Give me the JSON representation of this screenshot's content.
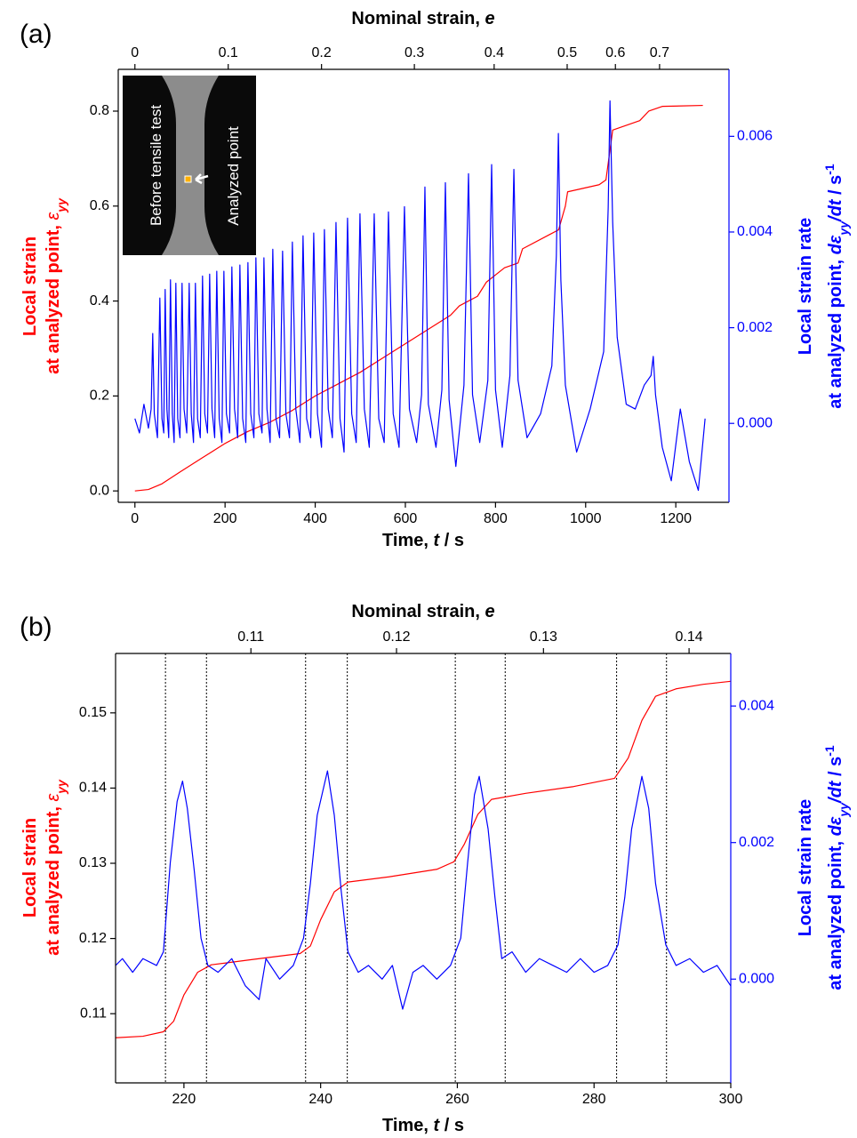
{
  "chart_data": [
    {
      "type": "line",
      "panel_label": "(a)",
      "x_label": [
        "Time, ",
        "t",
        " / s"
      ],
      "y_label": [
        [
          "Local strain"
        ],
        [
          "at analyzed point, ",
          "ε",
          "yy"
        ]
      ],
      "y2_label": [
        [
          "Local strain rate"
        ],
        [
          "at analyzed point, ",
          "dε",
          "yy",
          "/dt",
          " / s",
          "-1"
        ]
      ],
      "x2": {
        "label": [
          "Nominal strain, ",
          "e"
        ],
        "ticks": [
          0,
          0.1,
          0.2,
          0.3,
          0.4,
          0.5,
          0.6,
          0.7
        ],
        "tick_times": [
          0,
          207,
          414,
          620,
          797,
          959,
          1066,
          1164
        ]
      },
      "annotations": [
        "Before tensile test",
        "Analyzed point"
      ],
      "xlim": [
        -37,
        1318
      ],
      "xticks": [
        0,
        200,
        400,
        600,
        800,
        1000,
        1200
      ],
      "ylim": [
        -0.024,
        0.888
      ],
      "yticks": [
        {
          "value": 0,
          "label": "0.0"
        },
        0.2,
        0.4,
        0.6,
        0.8
      ],
      "y2lim": [
        -0.00165,
        0.0074
      ],
      "y2ticks": [
        {
          "value": 0,
          "label": "0.000"
        },
        {
          "value": 0.002,
          "label": "0.002"
        },
        {
          "value": 0.004,
          "label": "0.004"
        },
        {
          "value": 0.006,
          "label": "0.006"
        }
      ],
      "series": [
        {
          "color": "#ff0000",
          "x": [
            0,
            30,
            60,
            100,
            150,
            200,
            250,
            300,
            350,
            400,
            450,
            500,
            550,
            600,
            650,
            700,
            720,
            760,
            780,
            820,
            850,
            860,
            920,
            940,
            955,
            960,
            1030,
            1045,
            1060,
            1120,
            1140,
            1170,
            1260
          ],
          "values": [
            0,
            0.003,
            0.015,
            0.04,
            0.07,
            0.1,
            0.125,
            0.145,
            0.17,
            0.2,
            0.225,
            0.25,
            0.28,
            0.31,
            0.34,
            0.37,
            0.39,
            0.41,
            0.44,
            0.47,
            0.48,
            0.51,
            0.54,
            0.55,
            0.6,
            0.63,
            0.645,
            0.655,
            0.76,
            0.78,
            0.8,
            0.81,
            0.812
          ]
        },
        {
          "color": "#0000ff",
          "axis": "y2",
          "x": [
            0,
            10,
            20,
            30,
            36,
            39.5,
            43,
            50,
            55.3,
            60,
            64,
            67.1,
            71,
            75,
            78.9,
            83,
            87,
            90.8,
            95,
            100,
            104.6,
            109,
            115,
            120.4,
            125,
            130,
            134.2,
            139,
            145,
            150,
            155,
            161,
            165.8,
            171,
            177,
            181.6,
            187,
            193,
            197.4,
            203,
            210,
            215.1,
            221,
            228,
            232.9,
            239,
            246,
            250.7,
            257,
            264,
            268.4,
            275,
            282,
            286.2,
            293,
            300,
            305.9,
            313,
            321,
            327.6,
            335,
            343,
            349.3,
            357,
            366,
            373,
            381,
            390,
            396.7,
            405,
            414,
            420.4,
            429,
            438,
            446.1,
            455,
            464,
            471.7,
            481,
            491,
            499.3,
            509,
            520,
            530.9,
            541,
            553,
            562.5,
            573,
            586,
            598,
            609,
            625,
            636,
            643.4,
            651,
            668,
            681,
            688.8,
            697,
            712,
            730,
            740.1,
            749,
            765,
            783,
            791.4,
            800,
            815,
            832,
            840.8,
            850,
            870,
            900,
            925,
            935,
            939.5,
            945,
            955,
            980,
            1010,
            1040,
            1050,
            1054,
            1060,
            1070,
            1090,
            1110,
            1130,
            1145,
            1150,
            1155,
            1170,
            1190,
            1210,
            1230,
            1250,
            1265
          ],
          "values": [
            0.0001,
            -0.0002,
            0.0004,
            -0.0001,
            0.0003,
            0.00188,
            0.0002,
            -0.0003,
            0.00262,
            0.0001,
            -0.0002,
            0.0028,
            0.0003,
            -0.0003,
            0.003,
            0.0002,
            -0.0004,
            0.00293,
            0.0001,
            -0.0003,
            0.00293,
            0.0003,
            -0.0002,
            0.00293,
            0.0002,
            -0.0004,
            0.00293,
            0.0001,
            -0.0003,
            0.00308,
            0.0002,
            -0.0002,
            0.00312,
            0.0003,
            -0.0003,
            0.00318,
            0.0001,
            -0.0004,
            0.00318,
            0.0002,
            -0.0002,
            0.00327,
            0.0003,
            -0.0003,
            0.00331,
            0.0001,
            -0.0004,
            0.00336,
            0.0002,
            -0.0003,
            0.00346,
            0.0002,
            -0.0002,
            0.00346,
            0.0003,
            -0.0004,
            0.00364,
            0.0001,
            -0.0003,
            0.0036,
            0.0002,
            -0.0003,
            0.00379,
            0.0003,
            -0.0004,
            0.00392,
            0.0001,
            -0.0003,
            0.00398,
            0.0002,
            -0.0005,
            0.00405,
            0.0003,
            -0.0003,
            0.0042,
            0.0001,
            -0.0006,
            0.00429,
            0.0002,
            -0.0004,
            0.00438,
            0.0003,
            -0.0005,
            0.00438,
            0.0001,
            -0.0004,
            0.00442,
            0.0002,
            -0.0005,
            0.00453,
            0.0003,
            -0.0004,
            0.0006,
            0.00494,
            0.0004,
            -0.0005,
            0.0007,
            0.00503,
            0.0005,
            -0.0009,
            0.0008,
            0.00522,
            0.0006,
            -0.0004,
            0.0009,
            0.00541,
            0.0007,
            -0.0005,
            0.001,
            0.00531,
            0.0009,
            -0.0003,
            0.0002,
            0.0012,
            0.0035,
            0.00606,
            0.003,
            0.0008,
            -0.0006,
            0.0003,
            0.0015,
            0.0045,
            0.00674,
            0.0042,
            0.0018,
            0.0004,
            0.0003,
            0.0008,
            0.001,
            0.0014,
            0.0006,
            -0.0005,
            -0.0012,
            0.0003,
            -0.0008,
            -0.0014,
            0.0001
          ]
        }
      ]
    },
    {
      "type": "line",
      "panel_label": "(b)",
      "x_label": [
        "Time, ",
        "t",
        " / s"
      ],
      "y_label": [
        [
          "Local strain"
        ],
        [
          "at analyzed point, ",
          "ε",
          "yy"
        ]
      ],
      "y2_label": [
        [
          "Local strain rate"
        ],
        [
          "at analyzed point, ",
          "dε",
          "yy",
          "/dt",
          " / s",
          "-1"
        ]
      ],
      "x2": {
        "label": [
          "Nominal strain, ",
          "e"
        ],
        "ticks": [
          0.11,
          0.12,
          0.13,
          0.14
        ],
        "tick_times": [
          229.8,
          251.1,
          272.6,
          293.9
        ]
      },
      "vlines": [
        217.3,
        223.3,
        237.8,
        243.9,
        259.7,
        267.0,
        283.3,
        290.6
      ],
      "xlim": [
        210,
        300
      ],
      "xticks": [
        220,
        240,
        260,
        280,
        300
      ],
      "ylim": [
        0.1008,
        0.1579
      ],
      "yticks": [
        0.11,
        0.12,
        0.13,
        0.14,
        0.15
      ],
      "y2lim": [
        -0.00152,
        0.00477
      ],
      "y2ticks": [
        {
          "value": 0,
          "label": "0.000"
        },
        {
          "value": 0.002,
          "label": "0.002"
        },
        {
          "value": 0.004,
          "label": "0.004"
        }
      ],
      "series": [
        {
          "color": "#ff0000",
          "x": [
            210,
            214,
            217,
            218.5,
            220,
            222,
            224,
            230,
            237,
            238.5,
            240,
            242,
            244,
            250,
            257,
            259.5,
            261,
            263,
            265,
            270,
            277,
            283,
            285,
            287,
            289,
            292,
            296,
            300
          ],
          "values": [
            0.1068,
            0.107,
            0.1076,
            0.109,
            0.1125,
            0.1155,
            0.1165,
            0.1172,
            0.118,
            0.119,
            0.1225,
            0.1262,
            0.1275,
            0.1282,
            0.1292,
            0.1302,
            0.1325,
            0.1365,
            0.1385,
            0.1393,
            0.1402,
            0.1413,
            0.144,
            0.149,
            0.1522,
            0.1532,
            0.1538,
            0.1542
          ]
        },
        {
          "color": "#0000ff",
          "axis": "y2",
          "x": [
            210,
            211,
            212.5,
            214,
            216,
            217,
            218,
            219,
            219.8,
            220.5,
            221.5,
            222.5,
            223.5,
            225,
            227,
            229,
            231,
            232,
            234,
            236,
            237.5,
            238.5,
            239.5,
            241,
            242,
            243,
            244,
            245.5,
            247,
            249,
            250.5,
            252,
            253.5,
            255,
            257,
            259,
            260.5,
            261.5,
            262.5,
            263.2,
            264.5,
            265.5,
            266.5,
            268,
            270,
            272,
            274,
            276,
            278,
            280,
            282,
            283.5,
            284.5,
            285.5,
            287,
            288,
            289,
            290.5,
            292,
            294,
            296,
            298,
            300
          ],
          "values": [
            0.0002,
            0.0003,
            0.0001,
            0.0003,
            0.0002,
            0.0004,
            0.0017,
            0.0026,
            0.0029,
            0.0025,
            0.0016,
            0.0006,
            0.0002,
            0.0001,
            0.0003,
            -0.0001,
            -0.0003,
            0.0003,
            0,
            0.0002,
            0.0006,
            0.0014,
            0.0024,
            0.00305,
            0.0024,
            0.0013,
            0.0004,
            0.0001,
            0.0002,
            0,
            0.0002,
            -0.00044,
            0.0001,
            0.0002,
            0,
            0.0002,
            0.0006,
            0.0017,
            0.0027,
            0.00297,
            0.0022,
            0.0012,
            0.0003,
            0.0004,
            0.0001,
            0.0003,
            0.0002,
            0.0001,
            0.0003,
            0.0001,
            0.0002,
            0.0005,
            0.0012,
            0.0022,
            0.00297,
            0.0025,
            0.0014,
            0.0005,
            0.0002,
            0.0003,
            0.0001,
            0.0002,
            -0.0001
          ]
        }
      ]
    }
  ]
}
